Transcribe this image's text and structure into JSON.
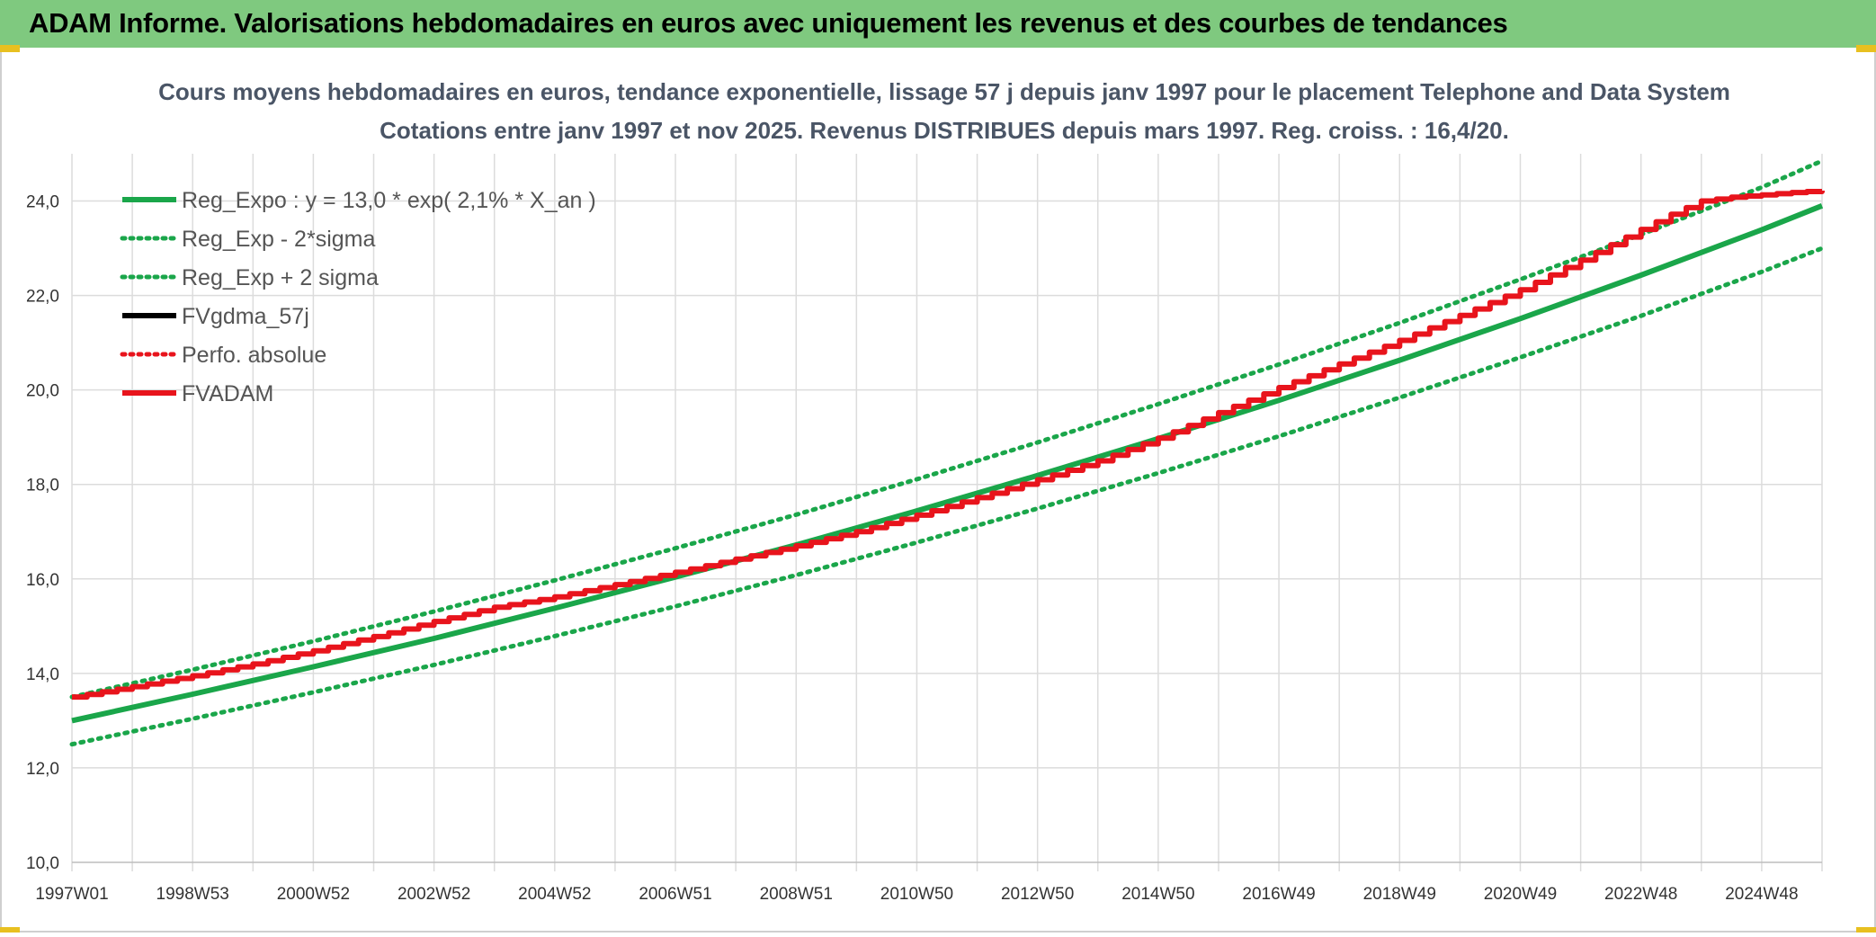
{
  "header": {
    "title": "ADAM Informe. Valorisations hebdomadaires en euros avec uniquement les revenus et des courbes de tendances"
  },
  "colors": {
    "banner": "#7fc97f",
    "green": "#1aa64a",
    "red": "#e8141c",
    "black": "#000000",
    "grid": "#dcdcdc"
  },
  "chart_data": {
    "type": "line",
    "title_lines": [
      "Cours moyens hebdomadaires en euros, tendance exponentielle, lissage 57 j depuis janv 1997 pour le placement Telephone and Data System",
      "Cotations entre janv 1997 et nov 2025. Revenus DISTRIBUES depuis mars 1997. Reg. croiss. : 16,4/20."
    ],
    "xlabel": "",
    "ylabel": "",
    "xlim": [
      1997.0,
      2026.0
    ],
    "ylim": [
      10.0,
      25.0
    ],
    "y_ticks": [
      10.0,
      12.0,
      14.0,
      16.0,
      18.0,
      20.0,
      22.0,
      24.0
    ],
    "y_tick_labels": [
      "10,0",
      "12,0",
      "14,0",
      "16,0",
      "18,0",
      "20,0",
      "22,0",
      "24,0"
    ],
    "x_ticks": [
      1997.0,
      1999.0,
      2001.0,
      2003.0,
      2005.0,
      2007.0,
      2009.0,
      2011.0,
      2013.0,
      2015.0,
      2017.0,
      2019.0,
      2021.0,
      2023.0,
      2025.0
    ],
    "x_tick_labels": [
      "1997W01",
      "1998W53",
      "2000W52",
      "2002W52",
      "2004W52",
      "2006W51",
      "2008W51",
      "2010W50",
      "2012W50",
      "2014W50",
      "2016W49",
      "2018W49",
      "2020W49",
      "2022W48",
      "2024W48"
    ],
    "legend_position": "top-left",
    "grid": true,
    "series": [
      {
        "name": "Reg_Expo : y = 13,0 * exp( 2,1% *  X_an )",
        "color": "#1aa64a",
        "style": "solid",
        "x": [
          1997,
          1999,
          2001,
          2003,
          2005,
          2007,
          2009,
          2011,
          2013,
          2015,
          2017,
          2019,
          2021,
          2023,
          2025,
          2026
        ],
        "y": [
          13.0,
          13.56,
          14.14,
          14.74,
          15.38,
          16.04,
          16.72,
          17.44,
          18.19,
          18.97,
          19.78,
          20.63,
          21.51,
          22.43,
          23.39,
          23.9
        ]
      },
      {
        "name": "Reg_Exp - 2*sigma",
        "color": "#1aa64a",
        "style": "dotted",
        "x": [
          1997,
          1999,
          2001,
          2003,
          2005,
          2007,
          2009,
          2011,
          2013,
          2015,
          2017,
          2019,
          2021,
          2023,
          2025,
          2026
        ],
        "y": [
          12.5,
          13.04,
          13.6,
          14.18,
          14.79,
          15.42,
          16.08,
          16.77,
          17.49,
          18.24,
          19.02,
          19.84,
          20.69,
          21.57,
          22.5,
          23.0
        ]
      },
      {
        "name": "Reg_Exp + 2 sigma",
        "color": "#1aa64a",
        "style": "dotted",
        "x": [
          1997,
          1999,
          2001,
          2003,
          2005,
          2007,
          2009,
          2011,
          2013,
          2015,
          2017,
          2019,
          2021,
          2023,
          2025,
          2026
        ],
        "y": [
          13.5,
          14.08,
          14.68,
          15.31,
          15.97,
          16.65,
          17.36,
          18.11,
          18.89,
          19.7,
          20.54,
          21.42,
          22.34,
          23.29,
          24.29,
          24.85
        ]
      },
      {
        "name": "FVgdma_57j",
        "color": "#000000",
        "style": "solid",
        "x": [],
        "y": []
      },
      {
        "name": "Perfo. absolue",
        "color": "#e8141c",
        "style": "dotted",
        "x": [],
        "y": []
      },
      {
        "name": "FVADAM",
        "color": "#e8141c",
        "style": "solid",
        "x": [
          1997,
          1998,
          1999,
          2000,
          2001,
          2002,
          2003,
          2004,
          2005,
          2006,
          2007,
          2008,
          2009,
          2010,
          2011,
          2012,
          2013,
          2014,
          2015,
          2016,
          2017,
          2018,
          2019,
          2020,
          2021,
          2022,
          2023,
          2023.5,
          2024,
          2024.5,
          2025,
          2025.5,
          2026
        ],
        "y": [
          13.5,
          13.72,
          13.95,
          14.2,
          14.48,
          14.78,
          15.1,
          15.4,
          15.62,
          15.88,
          16.14,
          16.42,
          16.7,
          17.0,
          17.35,
          17.72,
          18.1,
          18.5,
          18.98,
          19.52,
          20.05,
          20.55,
          21.05,
          21.58,
          22.12,
          22.75,
          23.4,
          23.72,
          24.0,
          24.08,
          24.13,
          24.18,
          24.22
        ]
      }
    ]
  }
}
